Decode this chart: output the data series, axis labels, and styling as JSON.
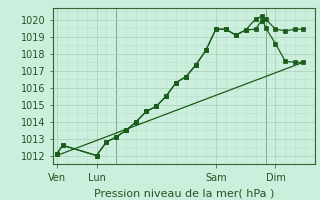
{
  "bg_color": "#cceedd",
  "grid_color_major": "#aaccbb",
  "grid_color_minor": "#bbddcc",
  "line_color": "#1a5c1a",
  "marker_color": "#1a5c1a",
  "title": "Pression niveau de la mer( hPa )",
  "ylim": [
    1011.5,
    1020.7
  ],
  "yticks": [
    1012,
    1013,
    1014,
    1015,
    1016,
    1017,
    1018,
    1019,
    1020
  ],
  "xtick_labels": [
    "Ven",
    "Lun",
    "Sam",
    "Dim"
  ],
  "xtick_positions": [
    0,
    2,
    8,
    11
  ],
  "vlines": [
    3,
    10.5
  ],
  "series1_x": [
    0,
    0.3,
    2,
    2.5,
    3,
    3.5,
    4,
    4.5,
    5,
    5.5,
    6,
    6.5,
    7,
    7.5,
    8,
    8.5,
    9,
    9.5,
    10,
    10.3,
    10.5,
    11,
    11.5,
    12,
    12.4
  ],
  "series1_y": [
    1012.1,
    1012.6,
    1012.0,
    1012.8,
    1013.1,
    1013.5,
    1014.0,
    1014.6,
    1014.9,
    1015.5,
    1016.3,
    1016.65,
    1017.35,
    1018.2,
    1019.45,
    1019.45,
    1019.1,
    1019.4,
    1019.45,
    1019.95,
    1020.05,
    1019.45,
    1019.35,
    1019.45,
    1019.45
  ],
  "series2_x": [
    0,
    0.3,
    2,
    2.5,
    3,
    3.5,
    4,
    4.5,
    5,
    5.5,
    6,
    6.5,
    7,
    7.5,
    8,
    8.5,
    9,
    9.5,
    10,
    10.3,
    10.5,
    11,
    11.5,
    12,
    12.4
  ],
  "series2_y": [
    1012.1,
    1012.6,
    1012.0,
    1012.8,
    1013.1,
    1013.5,
    1014.0,
    1014.6,
    1014.9,
    1015.5,
    1016.3,
    1016.65,
    1017.35,
    1018.2,
    1019.45,
    1019.45,
    1019.1,
    1019.4,
    1020.05,
    1020.2,
    1019.55,
    1018.6,
    1017.55,
    1017.5,
    1017.5
  ],
  "series3_x": [
    0,
    12.4
  ],
  "series3_y": [
    1012.0,
    1017.5
  ],
  "xlim": [
    -0.2,
    13.0
  ],
  "ylabel_fontsize": 7,
  "xlabel_fontsize": 8,
  "xtick_fontsize": 7
}
